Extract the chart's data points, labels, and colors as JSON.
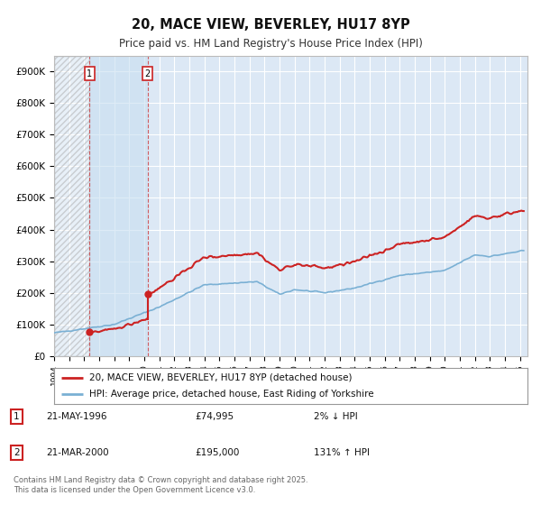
{
  "title": "20, MACE VIEW, BEVERLEY, HU17 8YP",
  "subtitle": "Price paid vs. HM Land Registry's House Price Index (HPI)",
  "background_color": "#ffffff",
  "plot_bg_color": "#dce8f5",
  "grid_color": "#ffffff",
  "hatch_color": "#c8c8c8",
  "hpi_color": "#7ab0d4",
  "price_color": "#cc2222",
  "sale1_date": 1996.366,
  "sale1_price": 74995,
  "sale2_date": 2000.22,
  "sale2_price": 195000,
  "xlim_start": 1994.0,
  "xlim_end": 2025.5,
  "ylim": [
    0,
    950000
  ],
  "yticks": [
    0,
    100000,
    200000,
    300000,
    400000,
    500000,
    600000,
    700000,
    800000,
    900000
  ],
  "ytick_labels": [
    "£0",
    "£100K",
    "£200K",
    "£300K",
    "£400K",
    "£500K",
    "£600K",
    "£700K",
    "£800K",
    "£900K"
  ],
  "legend_line1": "20, MACE VIEW, BEVERLEY, HU17 8YP (detached house)",
  "legend_line2": "HPI: Average price, detached house, East Riding of Yorkshire",
  "annotation1_label": "1",
  "annotation1_date": "21-MAY-1996",
  "annotation1_price": "£74,995",
  "annotation1_hpi": "2% ↓ HPI",
  "annotation2_label": "2",
  "annotation2_date": "21-MAR-2000",
  "annotation2_price": "£195,000",
  "annotation2_hpi": "131% ↑ HPI",
  "footer": "Contains HM Land Registry data © Crown copyright and database right 2025.\nThis data is licensed under the Open Government Licence v3.0."
}
